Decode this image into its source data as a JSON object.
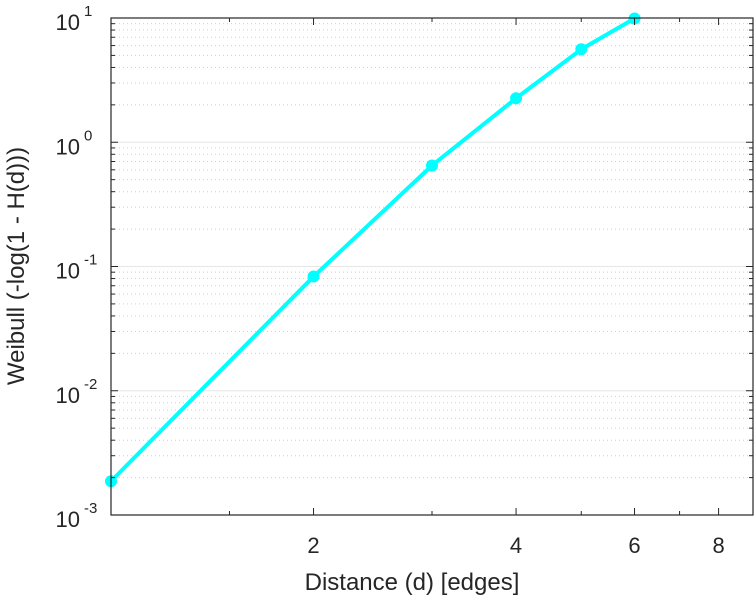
{
  "chart_data": {
    "type": "line",
    "title": "",
    "xlabel": "Distance (d) [edges]",
    "ylabel": "Weibull (-log(1 - H(d)))",
    "xscale": "log",
    "yscale": "log",
    "xlim": [
      1,
      9
    ],
    "ylim": [
      0.001,
      10
    ],
    "x_ticks": [
      2,
      4,
      6,
      8
    ],
    "x_tick_labels": [
      "2",
      "4",
      "6",
      "8"
    ],
    "y_ticks": [
      -3,
      -2,
      -1,
      0,
      1
    ],
    "y_tick_base": "10",
    "y_tick_exponents": [
      "-3",
      "-2",
      "-1",
      "0",
      "1"
    ],
    "grid": "y-major-and-minor",
    "legend": "none",
    "series": [
      {
        "name": "Weibull",
        "color": "#00ffff",
        "marker": "circle",
        "x": [
          1,
          2,
          3,
          4,
          5,
          6
        ],
        "y": [
          0.00187,
          0.083,
          0.65,
          2.26,
          5.6,
          9.9
        ]
      }
    ]
  }
}
